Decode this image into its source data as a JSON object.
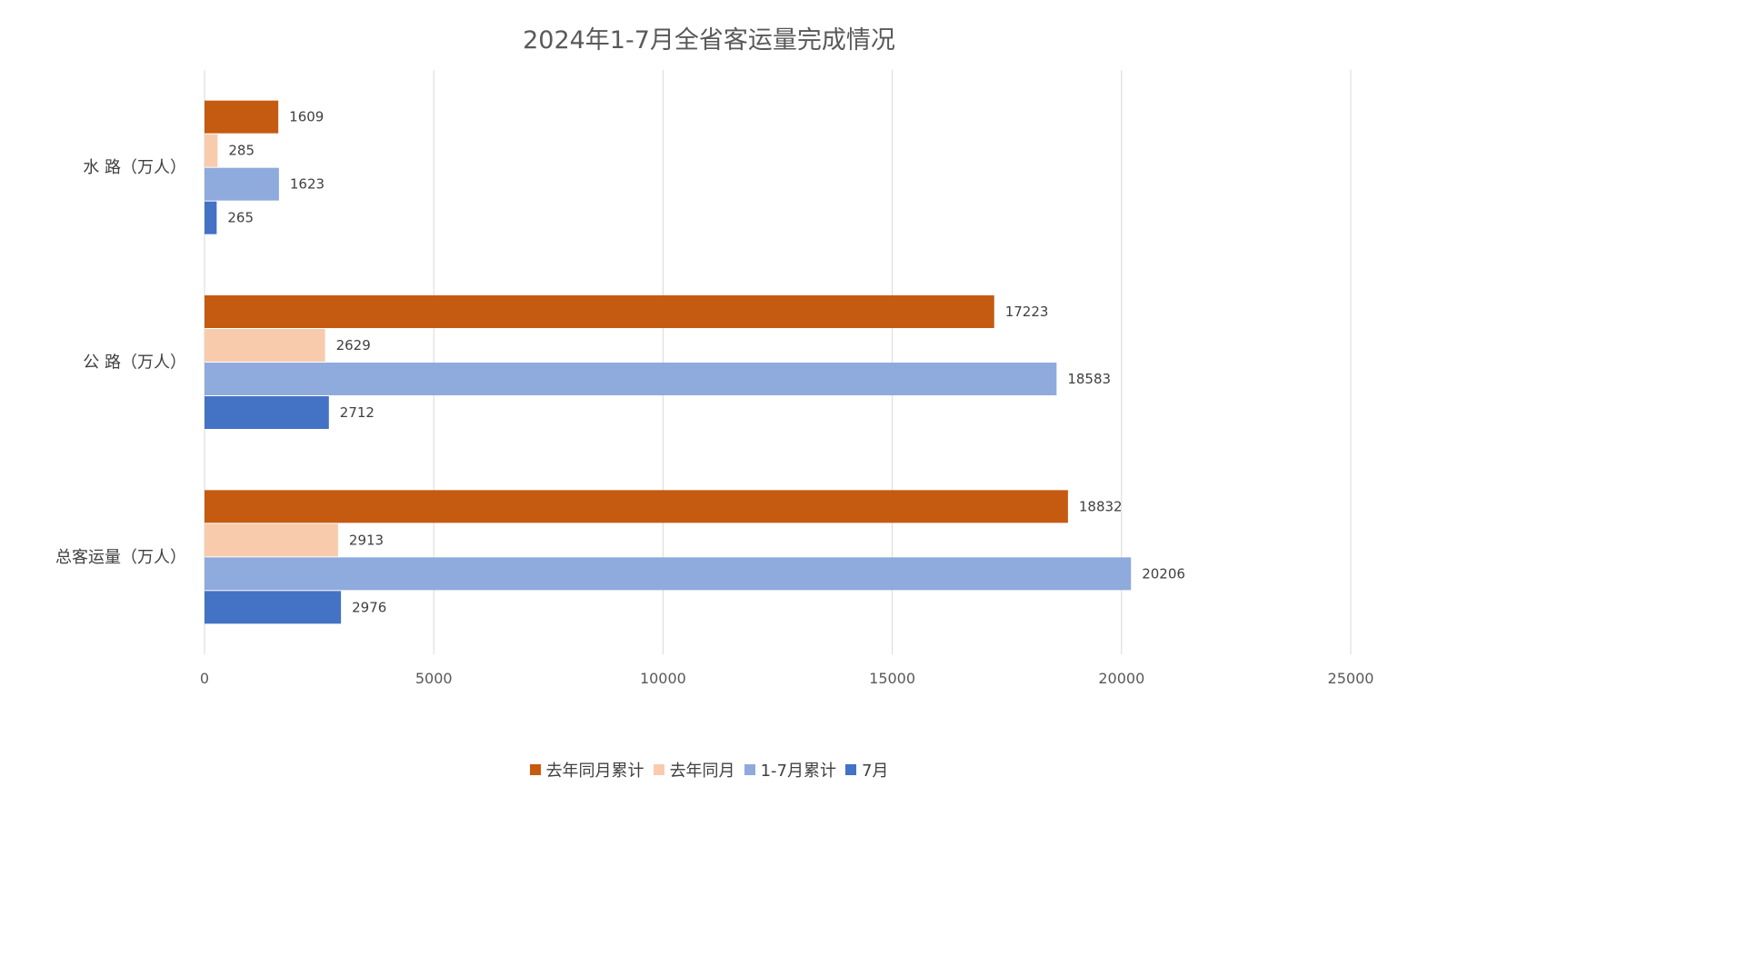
{
  "chart_data": {
    "type": "bar",
    "orientation": "horizontal",
    "title": "2024年1-7月全省客运量完成情况",
    "categories": [
      "水 路（万人）",
      "公 路（万人）",
      "总客运量（万人）"
    ],
    "series": [
      {
        "name": "去年同月累计",
        "color": "#C55A11",
        "values": [
          1609,
          17223,
          18832
        ]
      },
      {
        "name": "去年同月",
        "color": "#F8CBAD",
        "values": [
          285,
          2629,
          2913
        ]
      },
      {
        "name": "1-7月累计",
        "color": "#8FAADC",
        "values": [
          1623,
          18583,
          20206
        ]
      },
      {
        "name": "7月",
        "color": "#4472C4",
        "values": [
          265,
          2712,
          2976
        ]
      }
    ],
    "xlim": [
      0,
      25000
    ],
    "x_ticks": [
      0,
      5000,
      10000,
      15000,
      20000,
      25000
    ],
    "grid": true,
    "legend_position": "bottom"
  }
}
